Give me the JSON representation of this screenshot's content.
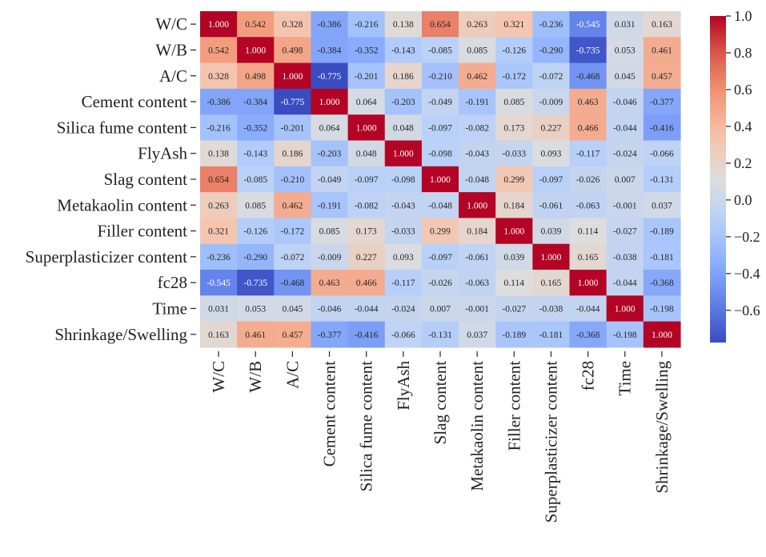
{
  "chart_data": {
    "type": "heatmap",
    "title": "",
    "labels": [
      "W/C",
      "W/B",
      "A/C",
      "Cement content",
      "Silica fume content",
      "FlyAsh",
      "Slag content",
      "Metakaolin content",
      "Filler content",
      "Superplasticizer content",
      "fc28",
      "Time",
      "Shrinkage/Swelling"
    ],
    "matrix": [
      [
        1.0,
        0.542,
        0.328,
        -0.386,
        -0.216,
        0.138,
        0.654,
        0.263,
        0.321,
        -0.236,
        -0.545,
        0.031,
        0.163
      ],
      [
        0.542,
        1.0,
        0.498,
        -0.384,
        -0.352,
        -0.143,
        -0.085,
        0.085,
        -0.126,
        -0.29,
        -0.735,
        0.053,
        0.461
      ],
      [
        0.328,
        0.498,
        1.0,
        -0.775,
        -0.201,
        0.186,
        -0.21,
        0.462,
        -0.172,
        -0.072,
        -0.468,
        0.045,
        0.457
      ],
      [
        -0.386,
        -0.384,
        -0.775,
        1.0,
        0.064,
        -0.203,
        -0.049,
        -0.191,
        0.085,
        -0.009,
        0.463,
        -0.046,
        -0.377
      ],
      [
        -0.216,
        -0.352,
        -0.201,
        0.064,
        1.0,
        0.048,
        -0.097,
        -0.082,
        0.173,
        0.227,
        0.466,
        -0.044,
        -0.416
      ],
      [
        0.138,
        -0.143,
        0.186,
        -0.203,
        0.048,
        1.0,
        -0.098,
        -0.043,
        -0.033,
        0.093,
        -0.117,
        -0.024,
        -0.066
      ],
      [
        0.654,
        -0.085,
        -0.21,
        -0.049,
        -0.097,
        -0.098,
        1.0,
        -0.048,
        0.299,
        -0.097,
        -0.026,
        0.007,
        -0.131
      ],
      [
        0.263,
        0.085,
        0.462,
        -0.191,
        -0.082,
        -0.043,
        -0.048,
        1.0,
        0.184,
        -0.061,
        -0.063,
        -0.001,
        0.037
      ],
      [
        0.321,
        -0.126,
        -0.172,
        0.085,
        0.173,
        -0.033,
        0.299,
        0.184,
        1.0,
        0.039,
        0.114,
        -0.027,
        -0.189
      ],
      [
        -0.236,
        -0.29,
        -0.072,
        -0.009,
        0.227,
        0.093,
        -0.097,
        -0.061,
        0.039,
        1.0,
        0.165,
        -0.038,
        -0.181
      ],
      [
        -0.545,
        -0.735,
        -0.468,
        0.463,
        0.466,
        -0.117,
        -0.026,
        -0.063,
        0.114,
        0.165,
        1.0,
        -0.044,
        -0.368
      ],
      [
        0.031,
        0.053,
        0.045,
        -0.046,
        -0.044,
        -0.024,
        0.007,
        -0.001,
        -0.027,
        -0.038,
        -0.044,
        1.0,
        -0.198
      ],
      [
        0.163,
        0.461,
        0.457,
        -0.377,
        -0.416,
        -0.066,
        -0.131,
        0.037,
        -0.189,
        -0.181,
        -0.368,
        -0.198,
        1.0
      ]
    ],
    "colormap": "coolwarm",
    "vmin": -0.775,
    "vmax": 1.0,
    "colorbar": {
      "ticks": [
        1.0,
        0.8,
        0.6,
        0.4,
        0.2,
        0.0,
        -0.2,
        -0.4,
        -0.6
      ],
      "tick_labels": [
        "1.0",
        "0.8",
        "0.6",
        "0.4",
        "0.2",
        "0.0",
        "−0.2",
        "−0.4",
        "−0.6"
      ]
    },
    "value_format": "0.000",
    "legend_position": "right"
  }
}
